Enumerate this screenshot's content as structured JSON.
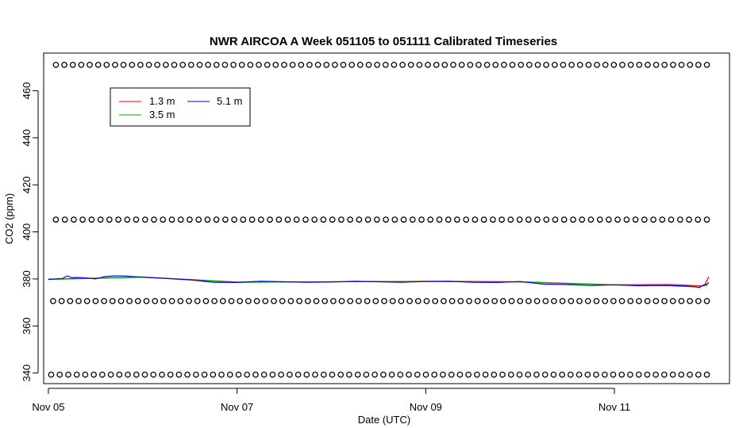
{
  "chart_data": {
    "type": "line",
    "title": "NWR AIRCOA A  Week 051105 to 051111  Calibrated Timeseries",
    "xlabel": "Date (UTC)",
    "ylabel": "CO2 (ppm)",
    "x_unit": "days",
    "xlim": [
      -0.05,
      7.22
    ],
    "ylim": [
      335.5,
      476
    ],
    "x_ticks": [
      {
        "value": 0,
        "label": "Nov 05"
      },
      {
        "value": 2,
        "label": "Nov 07"
      },
      {
        "value": 4,
        "label": "Nov 09"
      },
      {
        "value": 6,
        "label": "Nov 11"
      }
    ],
    "y_ticks": [
      340,
      360,
      380,
      400,
      420,
      440,
      460
    ],
    "legend": {
      "placement": "top-left",
      "entries": [
        {
          "label": "1.3 m",
          "color": "#ff0000"
        },
        {
          "label": "3.5 m",
          "color": "#00aa00"
        },
        {
          "label": "5.1 m",
          "color": "#0000ff"
        }
      ]
    },
    "series": [
      {
        "name": "5.1 m",
        "color": "#0000ff",
        "x": [
          0.0,
          0.15,
          0.2,
          0.25,
          0.3,
          0.4,
          0.5,
          0.6,
          0.7,
          0.8,
          0.9,
          1.0,
          1.25,
          1.5,
          1.75,
          2.0,
          2.25,
          2.5,
          2.75,
          3.0,
          3.25,
          3.5,
          3.75,
          4.0,
          4.25,
          4.5,
          4.75,
          5.0,
          5.25,
          5.5,
          5.75,
          6.0,
          6.25,
          6.5,
          6.75,
          6.85,
          6.9,
          6.95,
          6.97,
          7.0
        ],
        "values": [
          379.8,
          380.2,
          381.3,
          380.5,
          380.6,
          380.4,
          380.0,
          381.0,
          381.3,
          381.3,
          381.0,
          380.8,
          380.2,
          379.6,
          378.6,
          378.5,
          379.0,
          378.8,
          378.6,
          378.7,
          379.0,
          378.8,
          378.6,
          378.9,
          379.0,
          378.6,
          378.5,
          378.9,
          377.8,
          377.6,
          377.2,
          377.5,
          377.1,
          377.2,
          377.0,
          376.7,
          376.3,
          377.5,
          377.2,
          378.5
        ]
      },
      {
        "name": "3.5 m",
        "color": "#00aa00",
        "x": [
          0.0,
          1.0,
          2.0,
          3.0,
          4.0,
          5.0,
          6.0,
          6.5,
          6.9,
          7.0
        ],
        "values": [
          379.8,
          380.7,
          378.6,
          378.8,
          378.9,
          378.7,
          377.4,
          377.3,
          376.5,
          378.3
        ]
      },
      {
        "name": "1.3 m",
        "color": "#ff0000",
        "x": [
          0.0,
          1.0,
          2.0,
          3.0,
          4.0,
          5.0,
          6.0,
          6.6,
          6.95,
          7.0
        ],
        "values": [
          379.9,
          380.8,
          378.7,
          378.8,
          379.0,
          378.8,
          377.5,
          377.6,
          377.0,
          380.9
        ]
      }
    ],
    "marker_rows": [
      {
        "value": 471,
        "n": 78,
        "x0": 0.08,
        "x1": 6.98
      },
      {
        "value": 405.2,
        "n": 74,
        "x0": 0.08,
        "x1": 6.98
      },
      {
        "value": 370.6,
        "n": 78,
        "x0": 0.05,
        "x1": 6.98
      },
      {
        "value": 339.3,
        "n": 78,
        "x0": 0.03,
        "x1": 6.98
      }
    ]
  }
}
